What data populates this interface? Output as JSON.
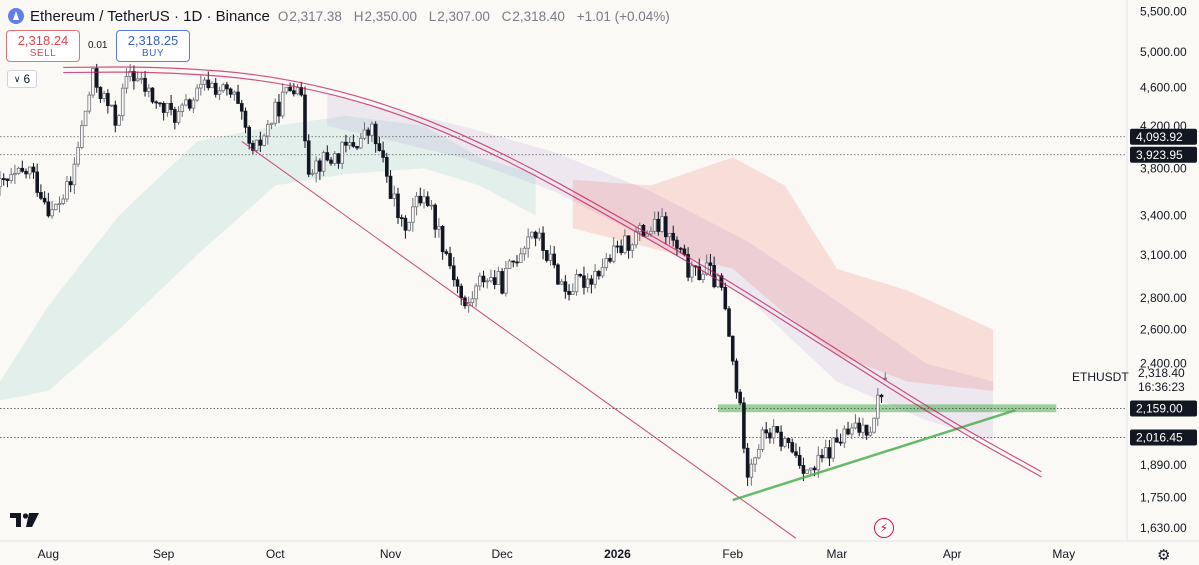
{
  "header": {
    "title": "Ethereum / TetherUS · 1D · Binance",
    "open_label": "O",
    "open": "2,317.38",
    "high_label": "H",
    "high": "2,350.00",
    "low_label": "L",
    "low": "2,307.00",
    "close_label": "C",
    "close": "2,318.40",
    "change": "+1.01 (+0.04%)"
  },
  "trade": {
    "sell_price": "2,318.24",
    "sell_label": "SELL",
    "spread": "0.01",
    "buy_price": "2,318.25",
    "buy_label": "BUY"
  },
  "indicators_count": "6",
  "symbol_label": "ETHUSDT",
  "countdown": "16:36:23",
  "colors": {
    "up": "#26a69a",
    "down": "#131722",
    "cloud_bull": "#26a69a",
    "cloud_bear": "#ef5350",
    "kumo_purple": "#9575cd",
    "channel": "#c2185b",
    "support": "#4caf50"
  },
  "chart_data": {
    "type": "candlestick",
    "y_scale": "log",
    "ylim": [
      1580,
      5650
    ],
    "yticks": [
      5500,
      5000,
      4600,
      4200,
      3800,
      3400,
      3100,
      2800,
      2600,
      2400,
      2159,
      2016.45,
      1890,
      1750,
      1630
    ],
    "ytick_labels": [
      "5,500.00",
      "5,000.00",
      "4,600.00",
      "4,200.00",
      "3,800.00",
      "3,400.00",
      "3,100.00",
      "2,800.00",
      "2,600.00",
      "2,400.00",
      "2,159.00",
      "2,016.45",
      "1,890.00",
      "1,750.00",
      "1,630.00"
    ],
    "x_start": "2025-07-19",
    "x_end": "2026-05-18",
    "xticks": [
      {
        "date": "2025-08-01",
        "label": "Aug"
      },
      {
        "date": "2025-09-01",
        "label": "Sep"
      },
      {
        "date": "2025-10-01",
        "label": "Oct"
      },
      {
        "date": "2025-11-01",
        "label": "Nov"
      },
      {
        "date": "2025-12-01",
        "label": "Dec"
      },
      {
        "date": "2026-01-01",
        "label": "2026",
        "bold": true
      },
      {
        "date": "2026-02-01",
        "label": "Feb"
      },
      {
        "date": "2026-03-01",
        "label": "Mar"
      },
      {
        "date": "2026-04-01",
        "label": "Apr"
      },
      {
        "date": "2026-05-01",
        "label": "May"
      }
    ],
    "price_lines": [
      {
        "value": 4093.92,
        "label": "4,093.92",
        "style": "dotted"
      },
      {
        "value": 3923.95,
        "label": "3,923.95",
        "style": "dotted"
      },
      {
        "value": 2159.0,
        "label": "2,159.00",
        "style": "dotted"
      },
      {
        "value": 2016.45,
        "label": "2,016.45",
        "style": "dotted"
      }
    ],
    "last_price": {
      "value": 2318.4,
      "label": "2,318.40"
    },
    "support_zone": {
      "from": "2026-01-28",
      "to": "2026-04-29",
      "low": 2140,
      "high": 2180
    },
    "trendlines": [
      {
        "name": "channel-lower",
        "from": [
          "2025-09-22",
          4050
        ],
        "to": [
          "2026-02-18",
          1590
        ],
        "color": "#c2185b"
      },
      {
        "name": "ascending-support",
        "from": [
          "2026-02-01",
          1740
        ],
        "to": [
          "2026-04-18",
          2150
        ],
        "color": "#4caf50"
      }
    ],
    "arc": {
      "points": [
        [
          "2025-08-05",
          4820
        ],
        [
          "2025-09-01",
          4830
        ],
        [
          "2025-10-01",
          4730
        ],
        [
          "2025-11-01",
          4420
        ],
        [
          "2025-12-01",
          3950
        ],
        [
          "2026-01-01",
          3400
        ],
        [
          "2026-02-01",
          2900
        ],
        [
          "2026-03-01",
          2480
        ],
        [
          "2026-04-01",
          2090
        ],
        [
          "2026-04-25",
          1860
        ]
      ],
      "offset": 0.012,
      "color": "#c2185b"
    },
    "kumo_bear": [
      [
        "2025-12-20",
        3700,
        3300
      ],
      [
        "2026-01-10",
        3650,
        3150
      ],
      [
        "2026-02-01",
        3900,
        3000
      ],
      [
        "2026-02-15",
        3650,
        2700
      ],
      [
        "2026-03-01",
        3000,
        2450
      ],
      [
        "2026-03-20",
        2850,
        2300
      ],
      [
        "2026-04-12",
        2600,
        2250
      ]
    ],
    "kumo_bull": [
      [
        "2025-07-19",
        2300,
        2200
      ],
      [
        "2025-08-01",
        2750,
        2250
      ],
      [
        "2025-08-20",
        3400,
        2600
      ],
      [
        "2025-09-10",
        4050,
        3100
      ],
      [
        "2025-10-01",
        4200,
        3650
      ],
      [
        "2025-10-20",
        4300,
        3750
      ],
      [
        "2025-11-10",
        4200,
        3800
      ],
      [
        "2025-11-25",
        3900,
        3650
      ],
      [
        "2025-12-10",
        3750,
        3400
      ]
    ],
    "kumo_purple": [
      [
        "2025-10-15",
        4520,
        4200
      ],
      [
        "2025-11-20",
        4200,
        3900
      ],
      [
        "2025-12-15",
        3950,
        3600
      ],
      [
        "2026-01-10",
        3600,
        3200
      ],
      [
        "2026-02-05",
        3200,
        2800
      ],
      [
        "2026-03-01",
        2780,
        2300
      ],
      [
        "2026-03-25",
        2400,
        2100
      ],
      [
        "2026-04-12",
        2300,
        2000
      ]
    ],
    "anchors": [
      [
        "2025-07-19",
        3640
      ],
      [
        "2025-07-27",
        3780
      ],
      [
        "2025-08-02",
        3420
      ],
      [
        "2025-08-07",
        3650
      ],
      [
        "2025-08-13",
        4700
      ],
      [
        "2025-08-19",
        4250
      ],
      [
        "2025-08-23",
        4780
      ],
      [
        "2025-08-31",
        4380
      ],
      [
        "2025-09-05",
        4300
      ],
      [
        "2025-09-13",
        4650
      ],
      [
        "2025-09-20",
        4480
      ],
      [
        "2025-09-25",
        3900
      ],
      [
        "2025-10-03",
        4480
      ],
      [
        "2025-10-07",
        4700
      ],
      [
        "2025-10-10",
        3830
      ],
      [
        "2025-10-17",
        3900
      ],
      [
        "2025-10-27",
        4150
      ],
      [
        "2025-11-04",
        3300
      ],
      [
        "2025-11-10",
        3600
      ],
      [
        "2025-11-21",
        2720
      ],
      [
        "2025-11-26",
        2950
      ],
      [
        "2025-12-01",
        2900
      ],
      [
        "2025-12-09",
        3300
      ],
      [
        "2025-12-18",
        2850
      ],
      [
        "2025-12-25",
        2950
      ],
      [
        "2026-01-06",
        3250
      ],
      [
        "2026-01-13",
        3320
      ],
      [
        "2026-01-21",
        2950
      ],
      [
        "2026-01-25",
        3000
      ],
      [
        "2026-01-29",
        2850
      ],
      [
        "2026-02-01",
        2400
      ],
      [
        "2026-02-05",
        1880
      ],
      [
        "2026-02-10",
        2050
      ],
      [
        "2026-02-16",
        1980
      ],
      [
        "2026-02-22",
        1850
      ],
      [
        "2026-03-01",
        2000
      ],
      [
        "2026-03-06",
        2050
      ],
      [
        "2026-03-10",
        2080
      ],
      [
        "2026-03-14",
        2318.4
      ]
    ]
  }
}
